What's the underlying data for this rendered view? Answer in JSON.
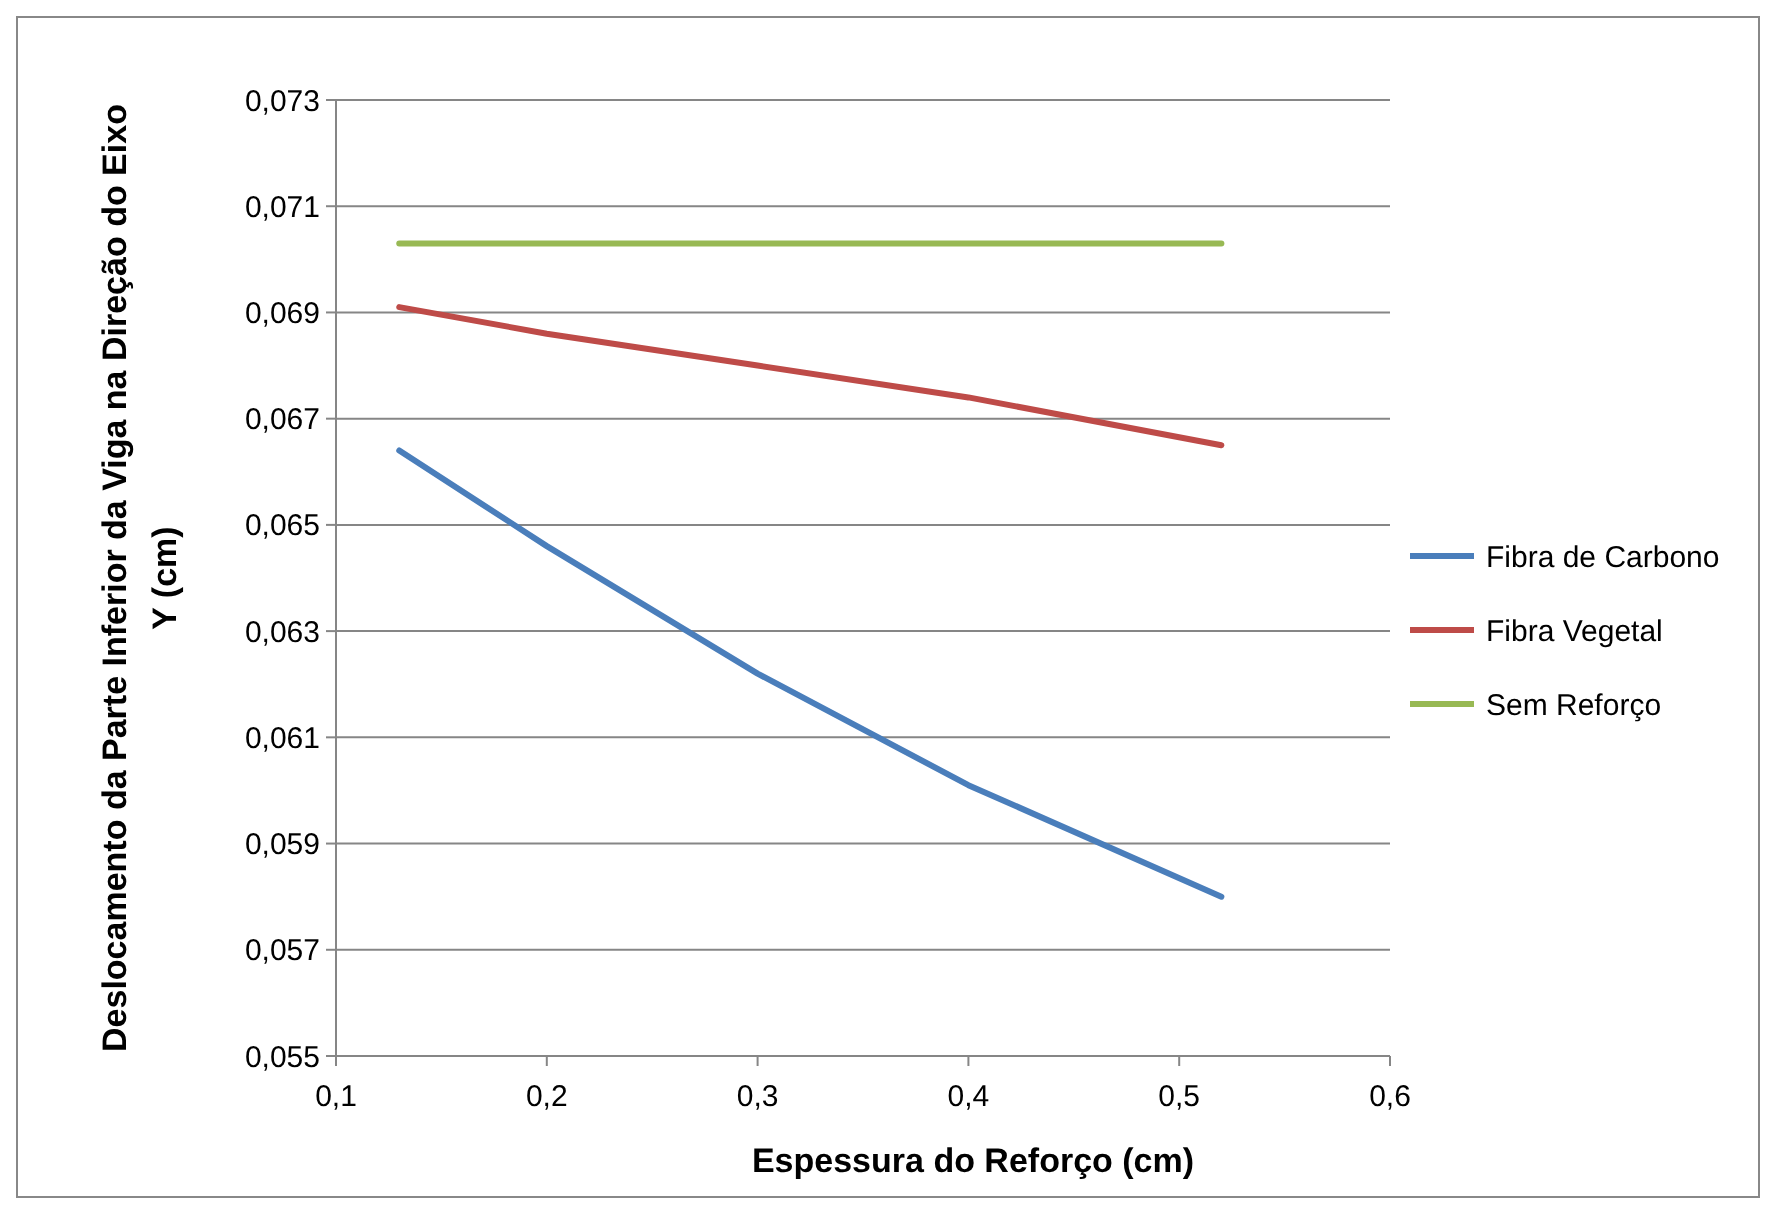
{
  "chart_data": {
    "type": "line",
    "xlabel": "Espessura do Reforço (cm)",
    "ylabel": "Deslocamento da Parte Inferior da Viga na Direção do Eixo Y (cm)",
    "x": [
      0.13,
      0.2,
      0.3,
      0.4,
      0.52
    ],
    "series": [
      {
        "name": "Fibra de Carbono",
        "color": "#4a7ebb",
        "values": [
          0.0664,
          0.0646,
          0.0622,
          0.0601,
          0.058
        ]
      },
      {
        "name": "Fibra Vegetal",
        "color": "#be4b48",
        "values": [
          0.0691,
          0.0686,
          0.068,
          0.0674,
          0.0665
        ]
      },
      {
        "name": "Sem Reforço",
        "color": "#98b954",
        "values": [
          0.0703,
          0.0703,
          0.0703,
          0.0703,
          0.0703
        ]
      }
    ],
    "xlim": [
      0.1,
      0.6
    ],
    "ylim": [
      0.055,
      0.073
    ],
    "xticks": [
      {
        "value": 0.1,
        "label": "0,1"
      },
      {
        "value": 0.2,
        "label": "0,2"
      },
      {
        "value": 0.3,
        "label": "0,3"
      },
      {
        "value": 0.4,
        "label": "0,4"
      },
      {
        "value": 0.5,
        "label": "0,5"
      },
      {
        "value": 0.6,
        "label": "0,6"
      }
    ],
    "yticks": [
      {
        "value": 0.055,
        "label": "0,055"
      },
      {
        "value": 0.057,
        "label": "0,057"
      },
      {
        "value": 0.059,
        "label": "0,059"
      },
      {
        "value": 0.061,
        "label": "0,061"
      },
      {
        "value": 0.063,
        "label": "0,063"
      },
      {
        "value": 0.065,
        "label": "0,065"
      },
      {
        "value": 0.067,
        "label": "0,067"
      },
      {
        "value": 0.069,
        "label": "0,069"
      },
      {
        "value": 0.071,
        "label": "0,071"
      },
      {
        "value": 0.073,
        "label": "0,073"
      }
    ],
    "grid": "y",
    "legend": "right",
    "marker": "none",
    "line_style": "solid"
  }
}
